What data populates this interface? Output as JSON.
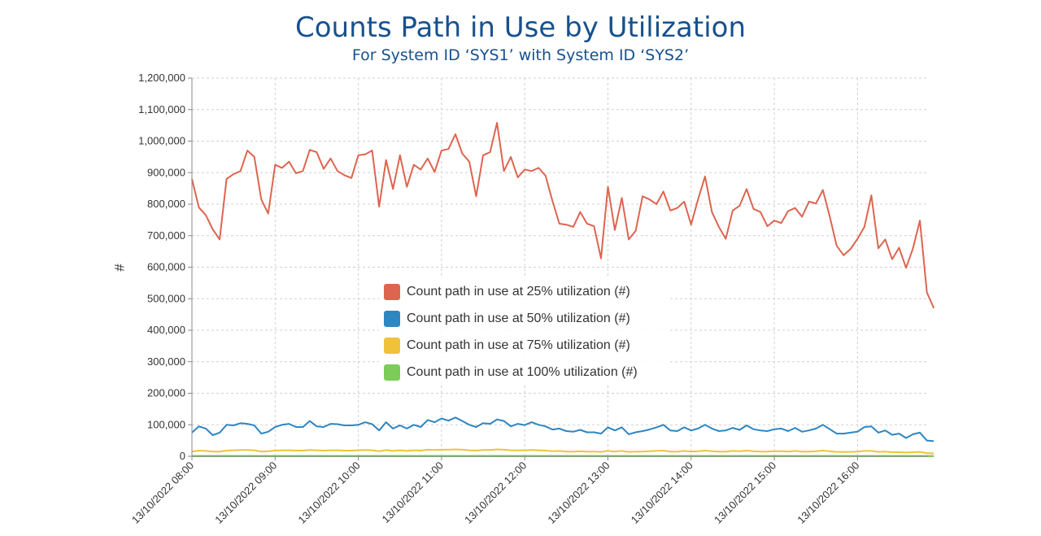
{
  "chart_data": {
    "type": "line",
    "title": "Counts Path in Use by Utilization",
    "subtitle": "For System ID ‘SYS1’ with System ID ‘SYS2’",
    "ylabel": "#",
    "ylim": [
      0,
      1200000
    ],
    "yticks": [
      "0",
      "100,000",
      "200,000",
      "300,000",
      "400,000",
      "500,000",
      "600,000",
      "700,000",
      "800,000",
      "900,000",
      "1,000,000",
      "1,100,000",
      "1,200,000"
    ],
    "xlim": [
      "13/10/2022 08:00",
      "13/10/2022 16:50"
    ],
    "xticks": [
      "13/10/2022 08:00",
      "13/10/2022 09:00",
      "13/10/2022 10:00",
      "13/10/2022 11:00",
      "13/10/2022 12:00",
      "13/10/2022 13:00",
      "13/10/2022 14:00",
      "13/10/2022 15:00",
      "13/10/2022 16:00"
    ],
    "grid": true,
    "legend_position": "center",
    "x_interval_minutes": 5,
    "series": [
      {
        "name": "Count path in use at 25% utilization (#)",
        "color": "#dd6550",
        "values": [
          880000,
          790000,
          765000,
          720000,
          688000,
          880000,
          895000,
          905000,
          970000,
          950000,
          815000,
          770000,
          925000,
          915000,
          935000,
          898000,
          905000,
          972000,
          965000,
          912000,
          945000,
          905000,
          892000,
          883000,
          955000,
          958000,
          970000,
          792000,
          940000,
          848000,
          955000,
          855000,
          925000,
          910000,
          945000,
          902000,
          970000,
          975000,
          1022000,
          960000,
          935000,
          825000,
          955000,
          965000,
          1058000,
          905000,
          950000,
          885000,
          910000,
          905000,
          915000,
          890000,
          810000,
          738000,
          735000,
          728000,
          775000,
          738000,
          730000,
          628000,
          855000,
          718000,
          820000,
          688000,
          715000,
          825000,
          815000,
          800000,
          840000,
          780000,
          788000,
          808000,
          735000,
          815000,
          888000,
          775000,
          728000,
          690000,
          780000,
          795000,
          848000,
          785000,
          775000,
          730000,
          748000,
          740000,
          778000,
          788000,
          760000,
          808000,
          802000,
          845000,
          760000,
          668000,
          638000,
          658000,
          690000,
          728000,
          828000,
          660000,
          688000,
          625000,
          662000,
          598000,
          660000,
          748000,
          520000,
          470000
        ]
      },
      {
        "name": "Count path in use at 50% utilization (#)",
        "color": "#2e86c1",
        "values": [
          75000,
          95000,
          88000,
          67000,
          75000,
          100000,
          98000,
          105000,
          103000,
          98000,
          72000,
          78000,
          93000,
          100000,
          103000,
          93000,
          93000,
          112000,
          95000,
          93000,
          103000,
          102000,
          98000,
          98000,
          100000,
          108000,
          102000,
          82000,
          108000,
          88000,
          98000,
          88000,
          100000,
          93000,
          115000,
          108000,
          120000,
          113000,
          123000,
          112000,
          100000,
          93000,
          105000,
          103000,
          117000,
          112000,
          95000,
          103000,
          99000,
          108000,
          100000,
          95000,
          85000,
          88000,
          80000,
          78000,
          84000,
          76000,
          76000,
          72000,
          92000,
          82000,
          92000,
          70000,
          76000,
          80000,
          85000,
          92000,
          100000,
          82000,
          80000,
          92000,
          82000,
          88000,
          100000,
          88000,
          80000,
          82000,
          90000,
          84000,
          98000,
          86000,
          82000,
          80000,
          86000,
          88000,
          80000,
          90000,
          78000,
          82000,
          88000,
          100000,
          86000,
          72000,
          72000,
          75000,
          78000,
          93000,
          95000,
          75000,
          82000,
          68000,
          72000,
          58000,
          70000,
          75000,
          50000,
          48000
        ]
      },
      {
        "name": "Count path in use at 75% utilization (#)",
        "color": "#efc23a",
        "values": [
          15000,
          18000,
          17000,
          15000,
          15000,
          18000,
          19000,
          20000,
          20000,
          19000,
          15000,
          16000,
          18000,
          19000,
          19000,
          18000,
          18000,
          20000,
          19000,
          18000,
          19000,
          19000,
          18000,
          18000,
          19000,
          20000,
          19000,
          16000,
          20000,
          17000,
          19000,
          17000,
          19000,
          18000,
          21000,
          20000,
          21000,
          21000,
          22000,
          21000,
          19000,
          18000,
          20000,
          20000,
          22000,
          21000,
          19000,
          19000,
          19000,
          20000,
          19000,
          18000,
          16000,
          17000,
          15000,
          15000,
          16000,
          15000,
          15000,
          14000,
          17000,
          15000,
          17000,
          14000,
          15000,
          15000,
          16000,
          17000,
          18000,
          15000,
          15000,
          17000,
          15000,
          16000,
          18000,
          16000,
          15000,
          15000,
          17000,
          16000,
          18000,
          16000,
          15000,
          15000,
          16000,
          16000,
          15000,
          17000,
          15000,
          15000,
          16000,
          18000,
          16000,
          14000,
          14000,
          14000,
          15000,
          17000,
          17000,
          14000,
          15000,
          13000,
          13000,
          12000,
          13000,
          14000,
          10000,
          9000
        ]
      },
      {
        "name": "Count path in use at 100% utilization (#)",
        "color": "#7ccc5a",
        "values": [
          500,
          500,
          500,
          500,
          500,
          500,
          500,
          500,
          500,
          500,
          500,
          500,
          500,
          500,
          500,
          500,
          500,
          500,
          500,
          500,
          500,
          500,
          500,
          500,
          500,
          500,
          500,
          500,
          500,
          500,
          500,
          500,
          500,
          500,
          500,
          500,
          500,
          500,
          500,
          500,
          500,
          500,
          500,
          500,
          500,
          500,
          500,
          500,
          500,
          500,
          500,
          500,
          500,
          500,
          500,
          500,
          500,
          500,
          500,
          500,
          500,
          500,
          500,
          500,
          500,
          500,
          500,
          500,
          500,
          500,
          500,
          500,
          500,
          500,
          500,
          500,
          500,
          500,
          500,
          500,
          500,
          500,
          500,
          500,
          500,
          500,
          500,
          500,
          500,
          500,
          500,
          500,
          500,
          500,
          500,
          500,
          500,
          500,
          500,
          500,
          500,
          500,
          500,
          500,
          500,
          500,
          500,
          500
        ]
      }
    ]
  }
}
